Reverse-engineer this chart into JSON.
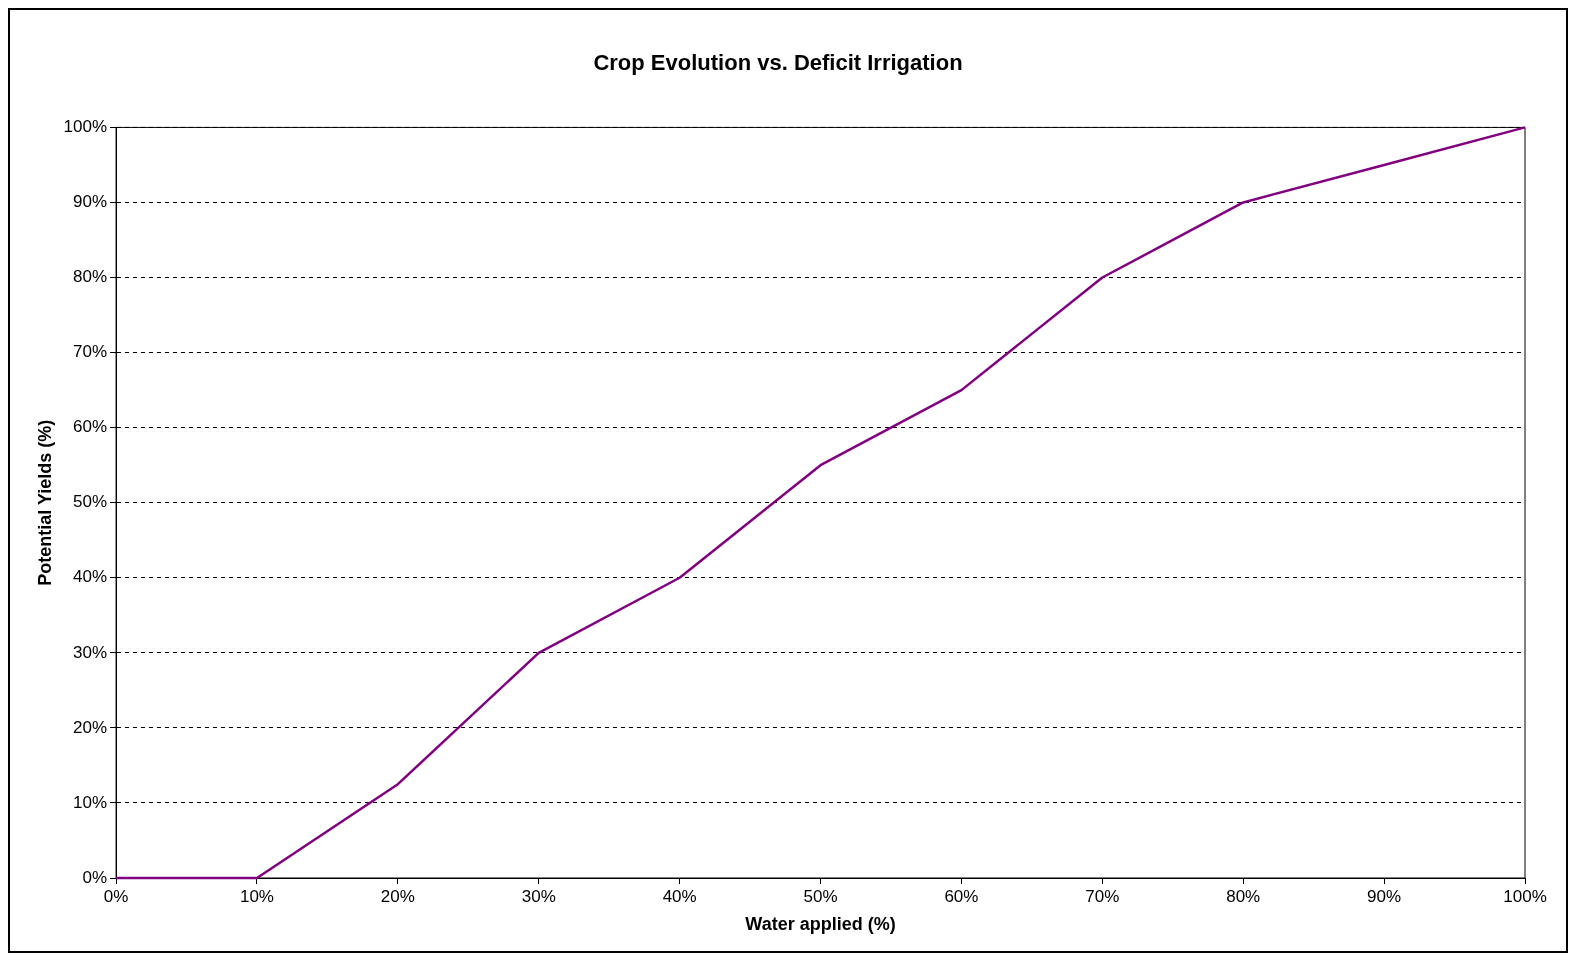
{
  "chart_data": {
    "type": "line",
    "title": "Crop Evolution vs. Deficit Irrigation",
    "xlabel": "Water applied (%)",
    "ylabel": "Potential Yields (%)",
    "x": [
      0,
      10,
      20,
      30,
      40,
      50,
      60,
      70,
      80,
      90,
      100
    ],
    "series": [
      {
        "color": "#800080",
        "values": [
          0,
          0,
          12.5,
          30,
          40,
          55,
          65,
          80,
          90,
          95,
          100
        ]
      }
    ],
    "xlim": [
      0,
      100
    ],
    "xticks": [
      {
        "value": 0,
        "label": "0%"
      },
      {
        "value": 10,
        "label": "10%"
      },
      {
        "value": 20,
        "label": "20%"
      },
      {
        "value": 30,
        "label": "30%"
      },
      {
        "value": 40,
        "label": "40%"
      },
      {
        "value": 50,
        "label": "50%"
      },
      {
        "value": 60,
        "label": "60%"
      },
      {
        "value": 70,
        "label": "70%"
      },
      {
        "value": 80,
        "label": "80%"
      },
      {
        "value": 90,
        "label": "90%"
      },
      {
        "value": 100,
        "label": "100%"
      }
    ],
    "ylim": [
      0,
      100
    ],
    "yticks": [
      {
        "value": 0,
        "label": "0%"
      },
      {
        "value": 10,
        "label": "10%"
      },
      {
        "value": 20,
        "label": "20%"
      },
      {
        "value": 30,
        "label": "30%"
      },
      {
        "value": 40,
        "label": "40%"
      },
      {
        "value": 50,
        "label": "50%"
      },
      {
        "value": 60,
        "label": "60%"
      },
      {
        "value": 70,
        "label": "70%"
      },
      {
        "value": 80,
        "label": "80%"
      },
      {
        "value": 90,
        "label": "90%"
      },
      {
        "value": 100,
        "label": "100%"
      }
    ],
    "grid": "y",
    "legend": false,
    "marker": "none",
    "line_style": "solid"
  }
}
